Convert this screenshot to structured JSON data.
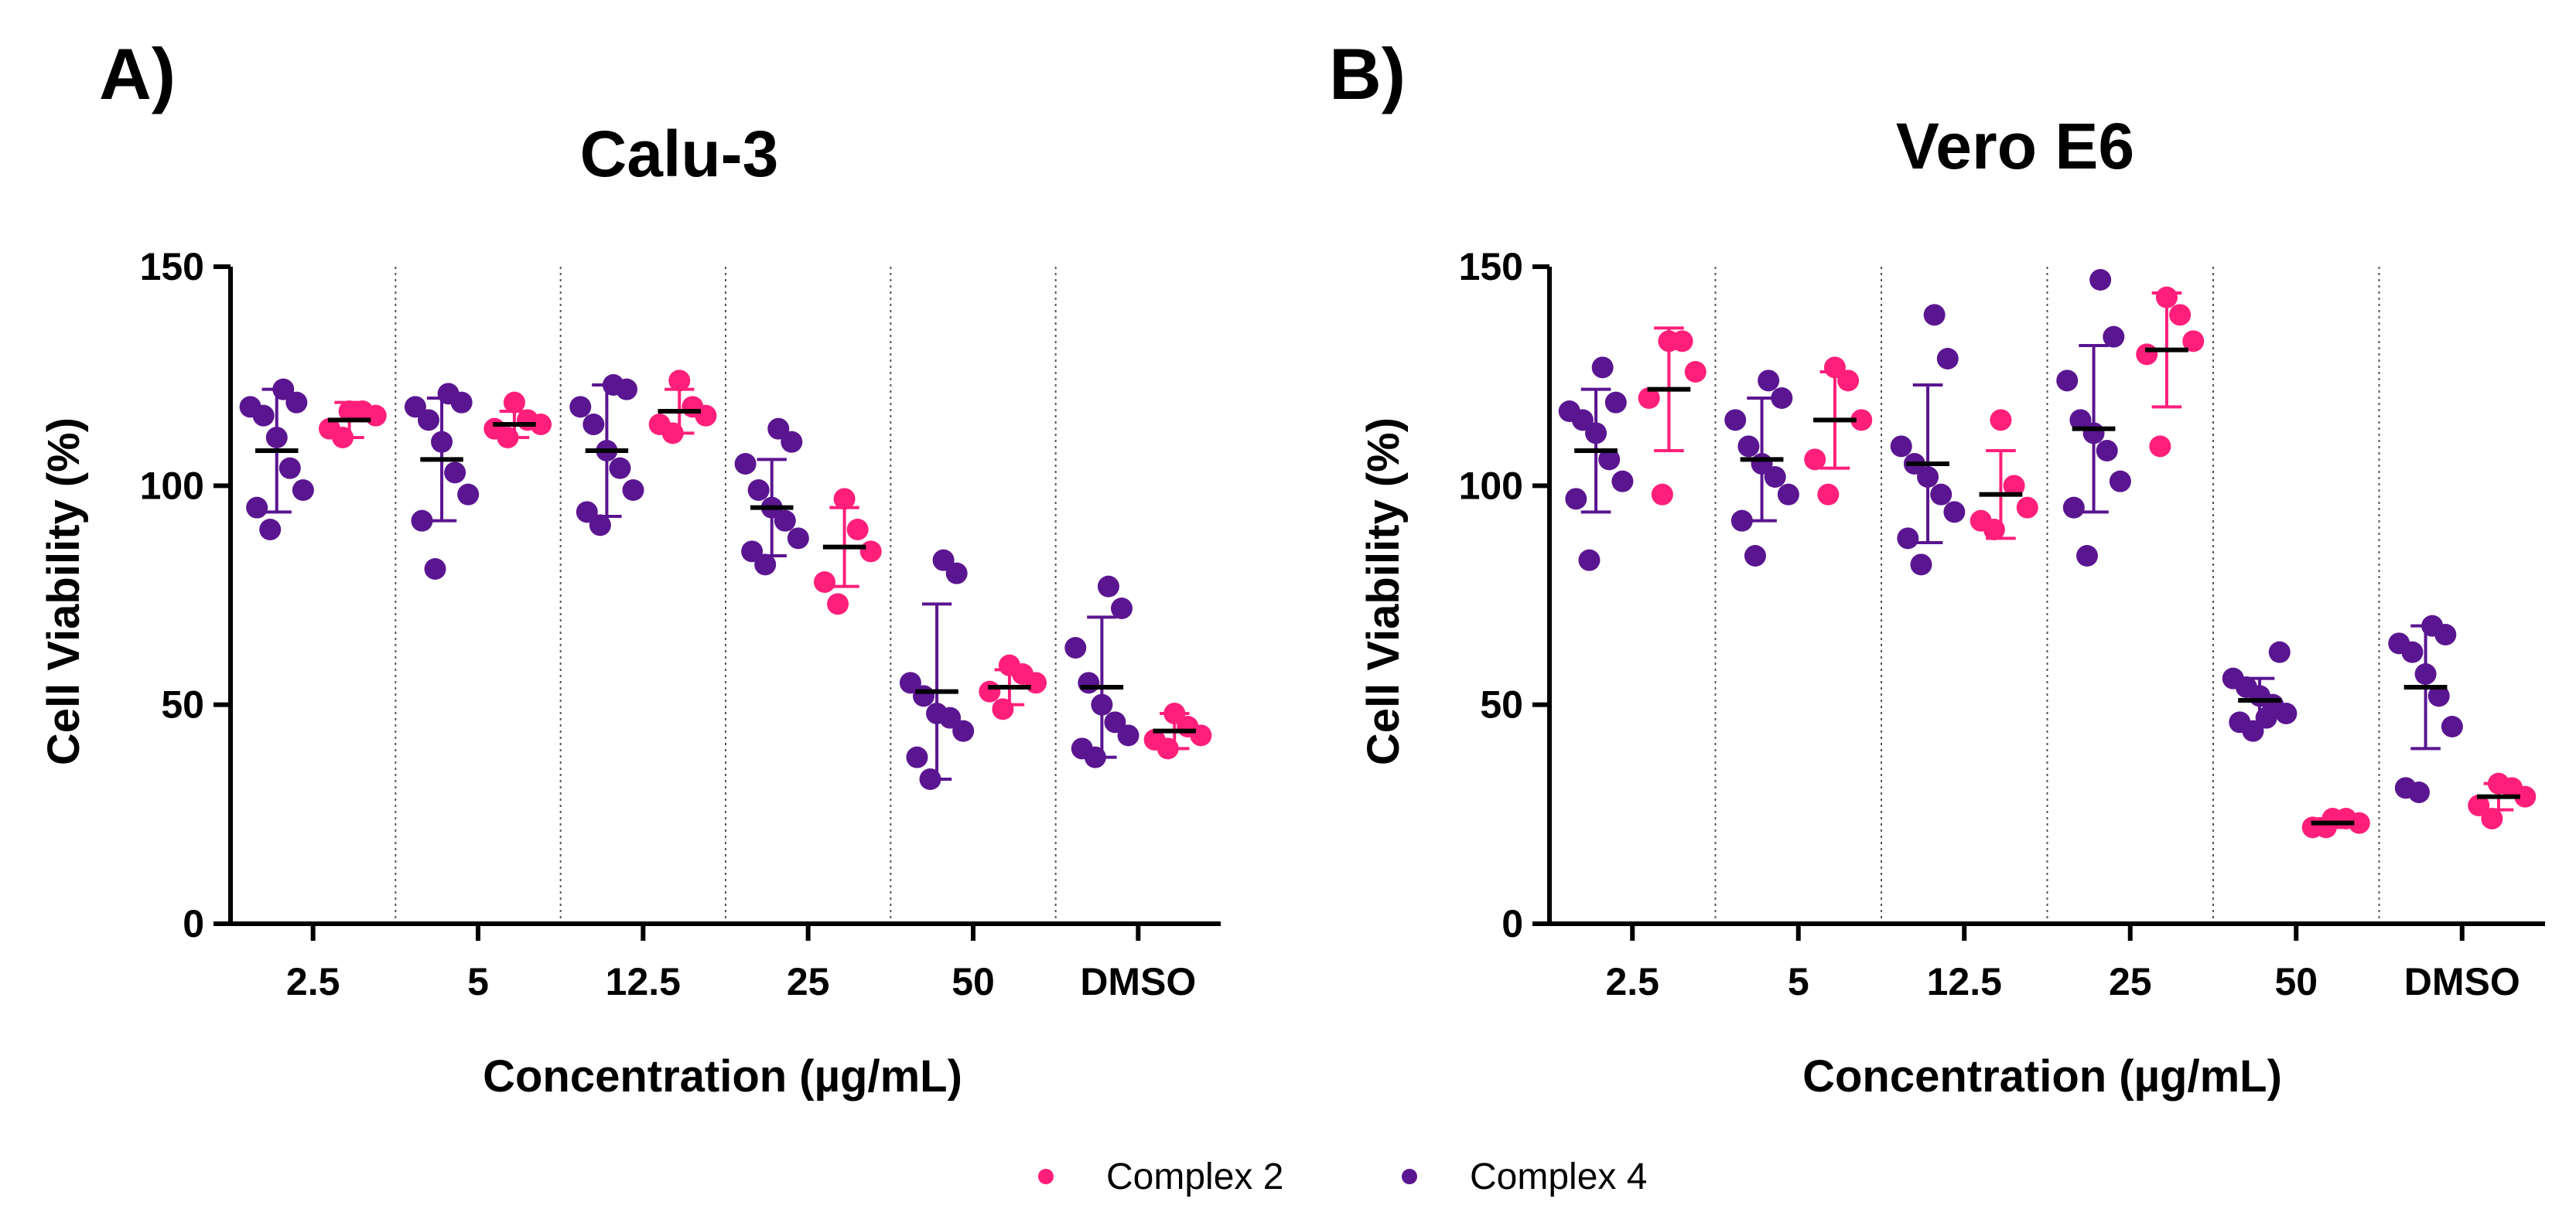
{
  "panels": [
    "A)",
    "B)"
  ],
  "legend": [
    {
      "label": "Complex 2",
      "color": "#ff1f7a"
    },
    {
      "label": "Complex 4",
      "color": "#5a1590"
    }
  ],
  "chart_data": [
    {
      "type": "scatter",
      "title": "Calu-3",
      "xlabel": "Concentration (µg/mL)",
      "ylabel": "Cell Viability (%)",
      "ylim": [
        0,
        150
      ],
      "yticks": [
        0,
        50,
        100,
        150
      ],
      "categories": [
        "2.5",
        "5",
        "12.5",
        "25",
        "50",
        "DMSO"
      ],
      "series": [
        {
          "name": "Complex 4",
          "color": "#5a1590",
          "mean": [
            108,
            106,
            108,
            95,
            53,
            54
          ],
          "sd": [
            14,
            14,
            15,
            11,
            20,
            16
          ],
          "points": [
            [
              90,
              95,
              99,
              104,
              111,
              116,
              118,
              119,
              122
            ],
            [
              81,
              92,
              98,
              103,
              110,
              115,
              118,
              119,
              121
            ],
            [
              91,
              94,
              99,
              104,
              108,
              114,
              118,
              122,
              123
            ],
            [
              82,
              85,
              88,
              92,
              95,
              99,
              105,
              110,
              113
            ],
            [
              33,
              38,
              44,
              47,
              48,
              52,
              55,
              80,
              83
            ],
            [
              38,
              40,
              43,
              46,
              50,
              55,
              63,
              72,
              77
            ]
          ]
        },
        {
          "name": "Complex 2",
          "color": "#ff1f7a",
          "mean": [
            115,
            114,
            117,
            86,
            54,
            44
          ],
          "sd": [
            4,
            3,
            5,
            9,
            4,
            4
          ],
          "points": [
            [
              111,
              113,
              116,
              117,
              117
            ],
            [
              111,
              113,
              114,
              115,
              119
            ],
            [
              112,
              114,
              116,
              118,
              124
            ],
            [
              73,
              78,
              85,
              90,
              97
            ],
            [
              49,
              53,
              55,
              57,
              59
            ],
            [
              40,
              42,
              43,
              45,
              48
            ]
          ]
        }
      ]
    },
    {
      "type": "scatter",
      "title": "Vero E6",
      "xlabel": "Concentration (µg/mL)",
      "ylabel": "Cell Viability (%)",
      "ylim": [
        0,
        150
      ],
      "yticks": [
        0,
        50,
        100,
        150
      ],
      "categories": [
        "2.5",
        "5",
        "12.5",
        "25",
        "50",
        "DMSO"
      ],
      "series": [
        {
          "name": "Complex 4",
          "color": "#5a1590",
          "mean": [
            108,
            106,
            105,
            113,
            51,
            54
          ],
          "sd": [
            14,
            14,
            18,
            19,
            5,
            14
          ],
          "points": [
            [
              83,
              97,
              101,
              106,
              112,
              115,
              117,
              119,
              127
            ],
            [
              84,
              92,
              98,
              102,
              105,
              109,
              115,
              120,
              124
            ],
            [
              82,
              88,
              94,
              98,
              102,
              105,
              109,
              129,
              139
            ],
            [
              84,
              95,
              101,
              108,
              112,
              115,
              124,
              134,
              147
            ],
            [
              44,
              46,
              48,
              50,
              52,
              54,
              56,
              62,
              47
            ],
            [
              30,
              31,
              45,
              52,
              57,
              62,
              64,
              66,
              68
            ]
          ]
        },
        {
          "name": "Complex 2",
          "color": "#ff1f7a",
          "mean": [
            122,
            115,
            98,
            131,
            23,
            29
          ],
          "sd": [
            14,
            11,
            10,
            13,
            1,
            3
          ],
          "points": [
            [
              98,
              120,
              126,
              133,
              133
            ],
            [
              98,
              106,
              115,
              124,
              127
            ],
            [
              90,
              92,
              95,
              100,
              115
            ],
            [
              109,
              130,
              133,
              139,
              143
            ],
            [
              22,
              22,
              23,
              24,
              24
            ],
            [
              24,
              27,
              29,
              31,
              32
            ]
          ]
        }
      ]
    }
  ]
}
